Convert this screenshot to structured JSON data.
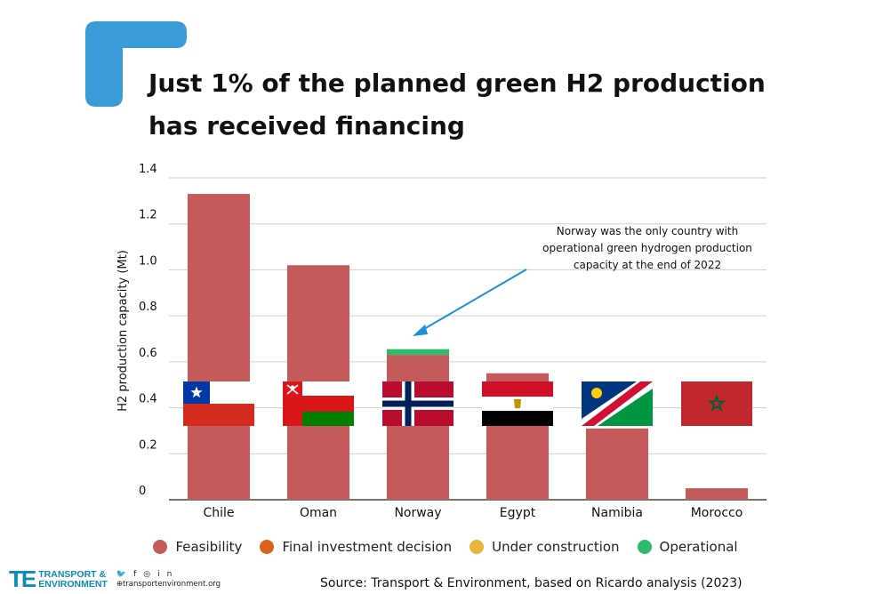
{
  "title_lines": [
    "Just 1% of the planned green H2 production",
    "has received financing"
  ],
  "colors": {
    "accent": "#3a9bd9",
    "feasibility": "#c45a59",
    "final_investment": "#d9621f",
    "under_construction": "#e9b439",
    "operational": "#2fbb6c",
    "grid": "#cfcfcf",
    "annotation_arrow": "#1f8fd6"
  },
  "chart_data": {
    "type": "bar",
    "stacked": true,
    "categories": [
      "Chile",
      "Oman",
      "Norway",
      "Egypt",
      "Namibia",
      "Morocco"
    ],
    "series": [
      {
        "name": "Feasibility",
        "values": [
          1.33,
          1.02,
          0.63,
          0.55,
          0.31,
          0.05
        ]
      },
      {
        "name": "Final investment decision",
        "values": [
          0,
          0,
          0,
          0,
          0,
          0
        ]
      },
      {
        "name": "Under construction",
        "values": [
          0,
          0,
          0,
          0,
          0,
          0
        ]
      },
      {
        "name": "Operational",
        "values": [
          0,
          0,
          0.025,
          0,
          0,
          0
        ]
      }
    ],
    "ylabel": "H2 production capacity (Mt)",
    "xlabel": "",
    "ylim": [
      0,
      1.4
    ],
    "yticks": [
      0,
      0.2,
      0.4,
      0.6,
      0.8,
      1.0,
      1.2,
      1.4
    ],
    "ytick_labels": [
      "0",
      "0.2",
      "0.4",
      "0.6",
      "0.8",
      "1.0",
      "1.2",
      "1.4"
    ],
    "grid": true,
    "legend_position": "bottom",
    "flags": [
      "chile-flag",
      "oman-flag",
      "norway-flag",
      "egypt-flag",
      "namibia-flag",
      "morocco-flag"
    ],
    "annotation": {
      "lines": [
        "Norway was the only country with",
        "operational green hydrogen production",
        "capacity at the end of 2022"
      ],
      "target_category": "Norway"
    }
  },
  "source": "Source: Transport & Environment, based on Ricardo analysis (2023)",
  "brand": {
    "mark": "TE",
    "name_line1": "TRANSPORT &",
    "name_line2": "ENVIRONMENT",
    "url": "transportenvironment.org"
  }
}
